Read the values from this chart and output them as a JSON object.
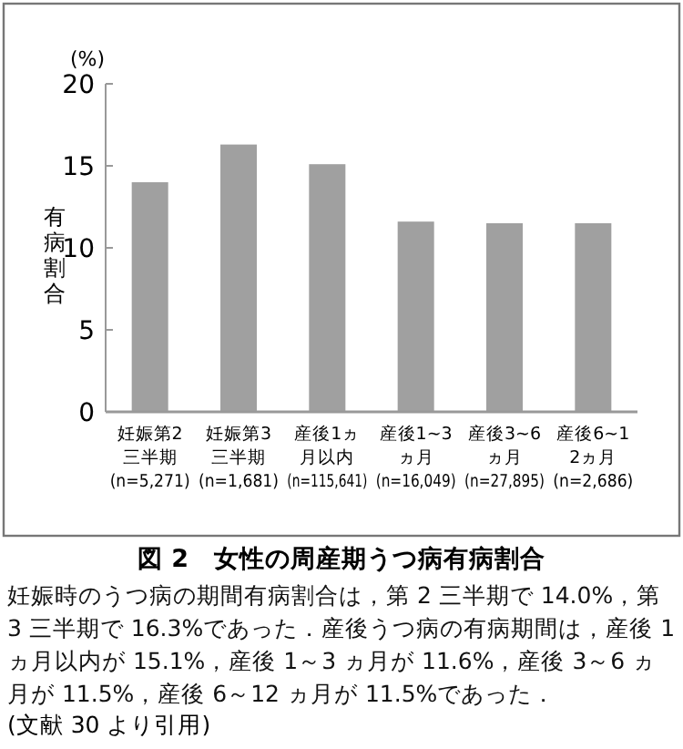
{
  "chart_data": {
    "type": "bar",
    "title": "図 2　女性の周産期うつ病有病割合",
    "ylabel": "有病割合",
    "categories": [
      "妊娠第2三半期(n=5,271)",
      "妊娠第3三半期(n=1,681)",
      "産後1ヵ月以内(n=115,641)",
      "産後1~3ヵ月(n=16,049)",
      "産後3~6ヵ月(n=27,895)",
      "産後6~12ヵ月(n=2,686)"
    ],
    "values": [
      14.0,
      16.3,
      15.1,
      11.6,
      11.5,
      11.5
    ],
    "color": "#a0a0a0",
    "ylim": [
      0,
      20
    ],
    "yticks": [
      0,
      5,
      10,
      15,
      20
    ],
    "annotations": [
      "(%)",
      "妊娠時のうつ病の期間有病割合は，第 2 三半期で 14.0%，第 3 三半期で 16.3%であった．産後うつ病の有病期間は，産後 1 ヵ月以内が 15.1%，産後 1～3 ヵ月が 11.6%，産後 3～6 ヵ月が 11.5%，産後 6～12 ヵ月が 11.5%であった．",
      "(文献 30 より引用)"
    ]
  }
}
